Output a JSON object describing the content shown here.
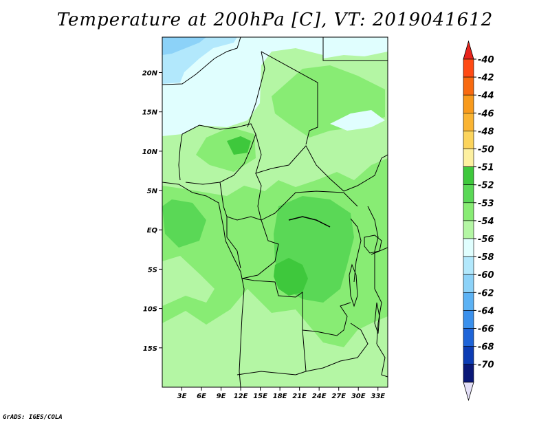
{
  "title": "Temperature at 200hPa [C], VT: 2019041612",
  "footer": "GrADS: IGES/COLA",
  "map": {
    "lon_range": [
      0,
      34.5
    ],
    "lat_range": [
      -20,
      24.5
    ],
    "lat_ticks": [
      {
        "value": 20,
        "label": "20N"
      },
      {
        "value": 15,
        "label": "15N"
      },
      {
        "value": 10,
        "label": "10N"
      },
      {
        "value": 5,
        "label": "5N"
      },
      {
        "value": 0,
        "label": "EQ"
      },
      {
        "value": -5,
        "label": "5S"
      },
      {
        "value": -10,
        "label": "10S"
      },
      {
        "value": -15,
        "label": "15S"
      }
    ],
    "lon_ticks": [
      {
        "value": 3,
        "label": "3E"
      },
      {
        "value": 6,
        "label": "6E"
      },
      {
        "value": 9,
        "label": "9E"
      },
      {
        "value": 12,
        "label": "12E"
      },
      {
        "value": 15,
        "label": "15E"
      },
      {
        "value": 18,
        "label": "18E"
      },
      {
        "value": 21,
        "label": "21E"
      },
      {
        "value": 24,
        "label": "24E"
      },
      {
        "value": 27,
        "label": "27E"
      },
      {
        "value": 30,
        "label": "30E"
      },
      {
        "value": 33,
        "label": "33E"
      }
    ]
  },
  "colorbar": {
    "top_color": "#e8241c",
    "bottom_color": "#e4e0f8",
    "levels": [
      {
        "label": "-40",
        "color": "#ff4a14"
      },
      {
        "label": "-42",
        "color": "#f86a10"
      },
      {
        "label": "-44",
        "color": "#f89a1c"
      },
      {
        "label": "-46",
        "color": "#fab432"
      },
      {
        "label": "-48",
        "color": "#fcd45c"
      },
      {
        "label": "-50",
        "color": "#fdf0a0"
      },
      {
        "label": "-51",
        "color": "#3ec83c"
      },
      {
        "label": "-52",
        "color": "#5ad856"
      },
      {
        "label": "-53",
        "color": "#88ec74"
      },
      {
        "label": "-54",
        "color": "#b4f6a4"
      },
      {
        "label": "-56",
        "color": "#e0fefe"
      },
      {
        "label": "-58",
        "color": "#b2e8fc"
      },
      {
        "label": "-60",
        "color": "#8cd2f8"
      },
      {
        "label": "-62",
        "color": "#5cb2f4"
      },
      {
        "label": "-64",
        "color": "#3a90ec"
      },
      {
        "label": "-66",
        "color": "#1e64d8"
      },
      {
        "label": "-68",
        "color": "#0c3cb4"
      },
      {
        "label": "-70",
        "color": "#0a1878"
      }
    ]
  }
}
